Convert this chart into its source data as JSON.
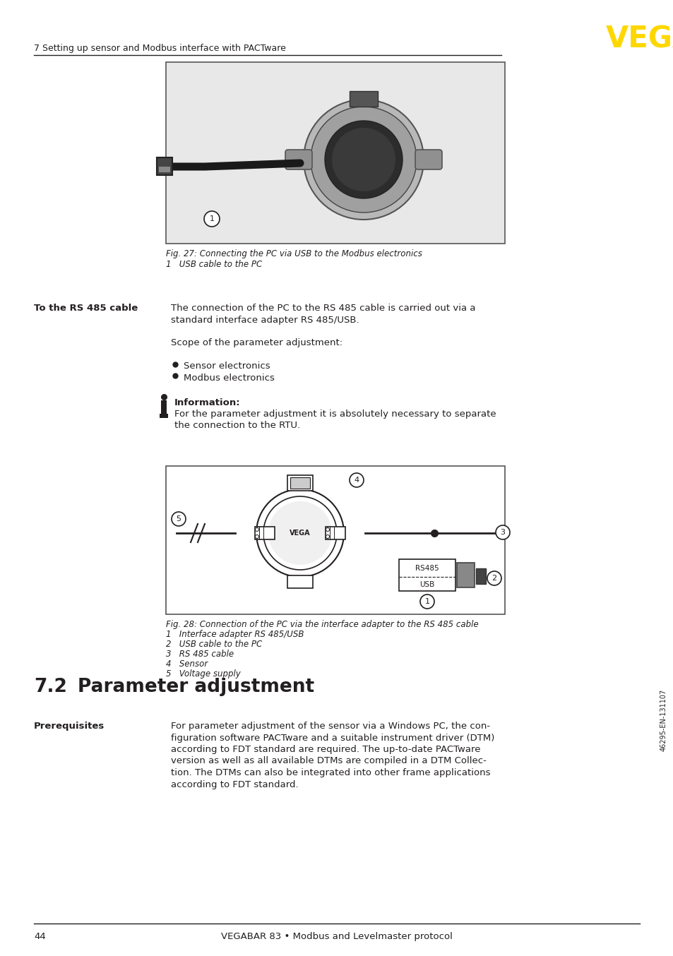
{
  "page_num": "44",
  "footer_text": "VEGABAR 83 • Modbus and Levelmaster protocol",
  "header_chapter": "7 Setting up sensor and Modbus interface with PACTware",
  "vega_color": "#FFD700",
  "text_color": "#231F20",
  "bg_color": "#FFFFFF",
  "fig27_caption": "Fig. 27: Connecting the PC via USB to the Modbus electronics",
  "fig27_item1": "1   USB cable to the PC",
  "left_label": "To the RS 485 cable",
  "para1_line1": "The connection of the PC to the RS 485 cable is carried out via a",
  "para1_line2": "standard interface adapter RS 485/USB.",
  "para2": "Scope of the parameter adjustment:",
  "bullet1": "Sensor electronics",
  "bullet2": "Modbus electronics",
  "info_title": "Information:",
  "info_line1": "For the parameter adjustment it is absolutely necessary to separate",
  "info_line2": "the connection to the RTU.",
  "fig28_caption": "Fig. 28: Connection of the PC via the interface adapter to the RS 485 cable",
  "fig28_items": [
    "1   Interface adapter RS 485/USB",
    "2   USB cable to the PC",
    "3   RS 485 cable",
    "4   Sensor",
    "5   Voltage supply"
  ],
  "section_num": "7.2",
  "section_title": "Parameter adjustment",
  "prereq_label": "Prerequisites",
  "prereq_lines": [
    "For parameter adjustment of the sensor via a Windows PC, the con-",
    "figuration software PACTware and a suitable instrument driver (DTM)",
    "according to FDT standard are required. The up-to-date PACTware",
    "version as well as all available DTMs are compiled in a DTM Collec-",
    "tion. The DTMs can also be integrated into other frame applications",
    "according to FDT standard."
  ],
  "sidebar_text": "46295-EN-131107"
}
